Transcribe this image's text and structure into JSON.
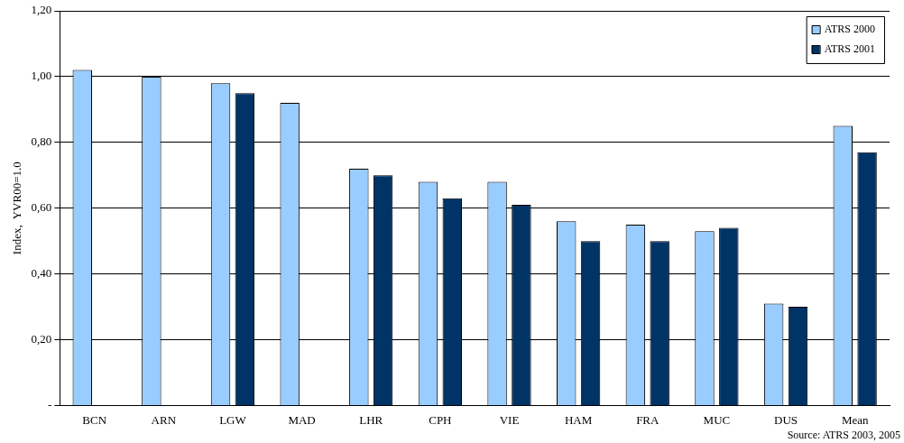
{
  "chart_data": {
    "type": "bar",
    "ylabel": "Index,  YVR00=1.0",
    "categories": [
      "BCN",
      "ARN",
      "LGW",
      "MAD",
      "LHR",
      "CPH",
      "VIE",
      "HAM",
      "FRA",
      "MUC",
      "DUS",
      "Mean"
    ],
    "series": [
      {
        "name": "ATRS 2000",
        "color": "#99ccff",
        "values": [
          1.02,
          1.0,
          0.98,
          0.92,
          0.72,
          0.68,
          0.68,
          0.56,
          0.55,
          0.53,
          0.31,
          0.85
        ]
      },
      {
        "name": "ATRS 2001",
        "color": "#003366",
        "values": [
          null,
          null,
          0.95,
          null,
          0.7,
          0.63,
          0.61,
          0.5,
          0.5,
          0.54,
          0.3,
          0.77
        ]
      }
    ],
    "ylim": [
      0,
      1.2
    ],
    "yticks": [
      {
        "value": 0,
        "label": "-"
      },
      {
        "value": 0.2,
        "label": "0,20"
      },
      {
        "value": 0.4,
        "label": "0,40"
      },
      {
        "value": 0.6,
        "label": "0,60"
      },
      {
        "value": 0.8,
        "label": "0,80"
      },
      {
        "value": 1.0,
        "label": "1,00"
      },
      {
        "value": 1.2,
        "label": "1,20"
      }
    ],
    "grid": "y",
    "legend": "top right",
    "annotations": [
      "Source: ATRS 2003, 2005"
    ]
  }
}
